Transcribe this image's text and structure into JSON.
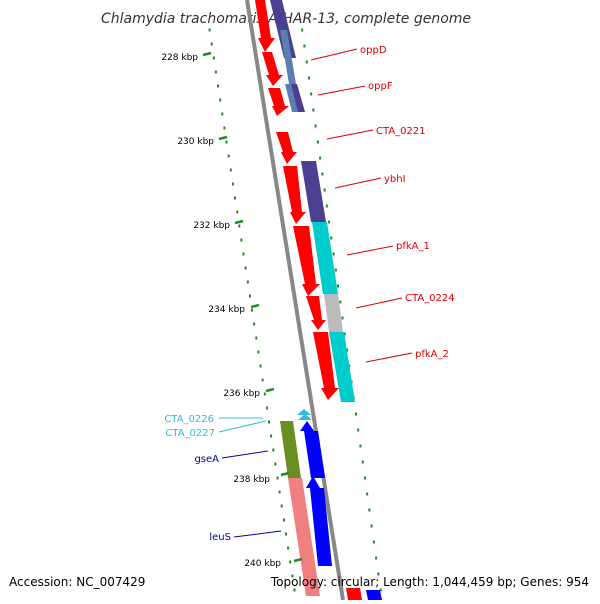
{
  "title": "Chlamydia trachomatis A/HAR-13, complete genome",
  "footer": {
    "accession": "Accession: NC_007429",
    "summary": "Topology: circular; Length: 1,044,459 bp; Genes: 954"
  },
  "ticks": [
    "228 kbp",
    "230 kbp",
    "232 kbp",
    "234 kbp",
    "236 kbp",
    "238 kbp",
    "240 kbp"
  ],
  "genes": [
    {
      "name": "oppD",
      "color": "#dd0000"
    },
    {
      "name": "oppF",
      "color": "#dd0000"
    },
    {
      "name": "CTA_0221",
      "color": "#dd0000"
    },
    {
      "name": "ybhI",
      "color": "#dd0000"
    },
    {
      "name": "pfkA_1",
      "color": "#dd0000"
    },
    {
      "name": "CTA_0224",
      "color": "#dd0000"
    },
    {
      "name": "pfkA_2",
      "color": "#dd0000"
    },
    {
      "name": "CTA_0226",
      "color": "#33bbdd"
    },
    {
      "name": "CTA_0227",
      "color": "#33bbdd"
    },
    {
      "name": "gseA",
      "color": "#0000aa"
    },
    {
      "name": "leuS",
      "color": "#0000aa"
    }
  ],
  "colors": {
    "forward_cds": "#ff0000",
    "reverse_cds": "#0000ff",
    "cog_purple": "#4b3f8f",
    "cog_steel": "#5b7fb0",
    "cog_cyan": "#00cccc",
    "cog_gray": "#bbbbbb",
    "cog_olive": "#6b8e23",
    "cog_pink": "#f08080",
    "backbone": "#888888",
    "gc_ticks": "#228b22"
  }
}
